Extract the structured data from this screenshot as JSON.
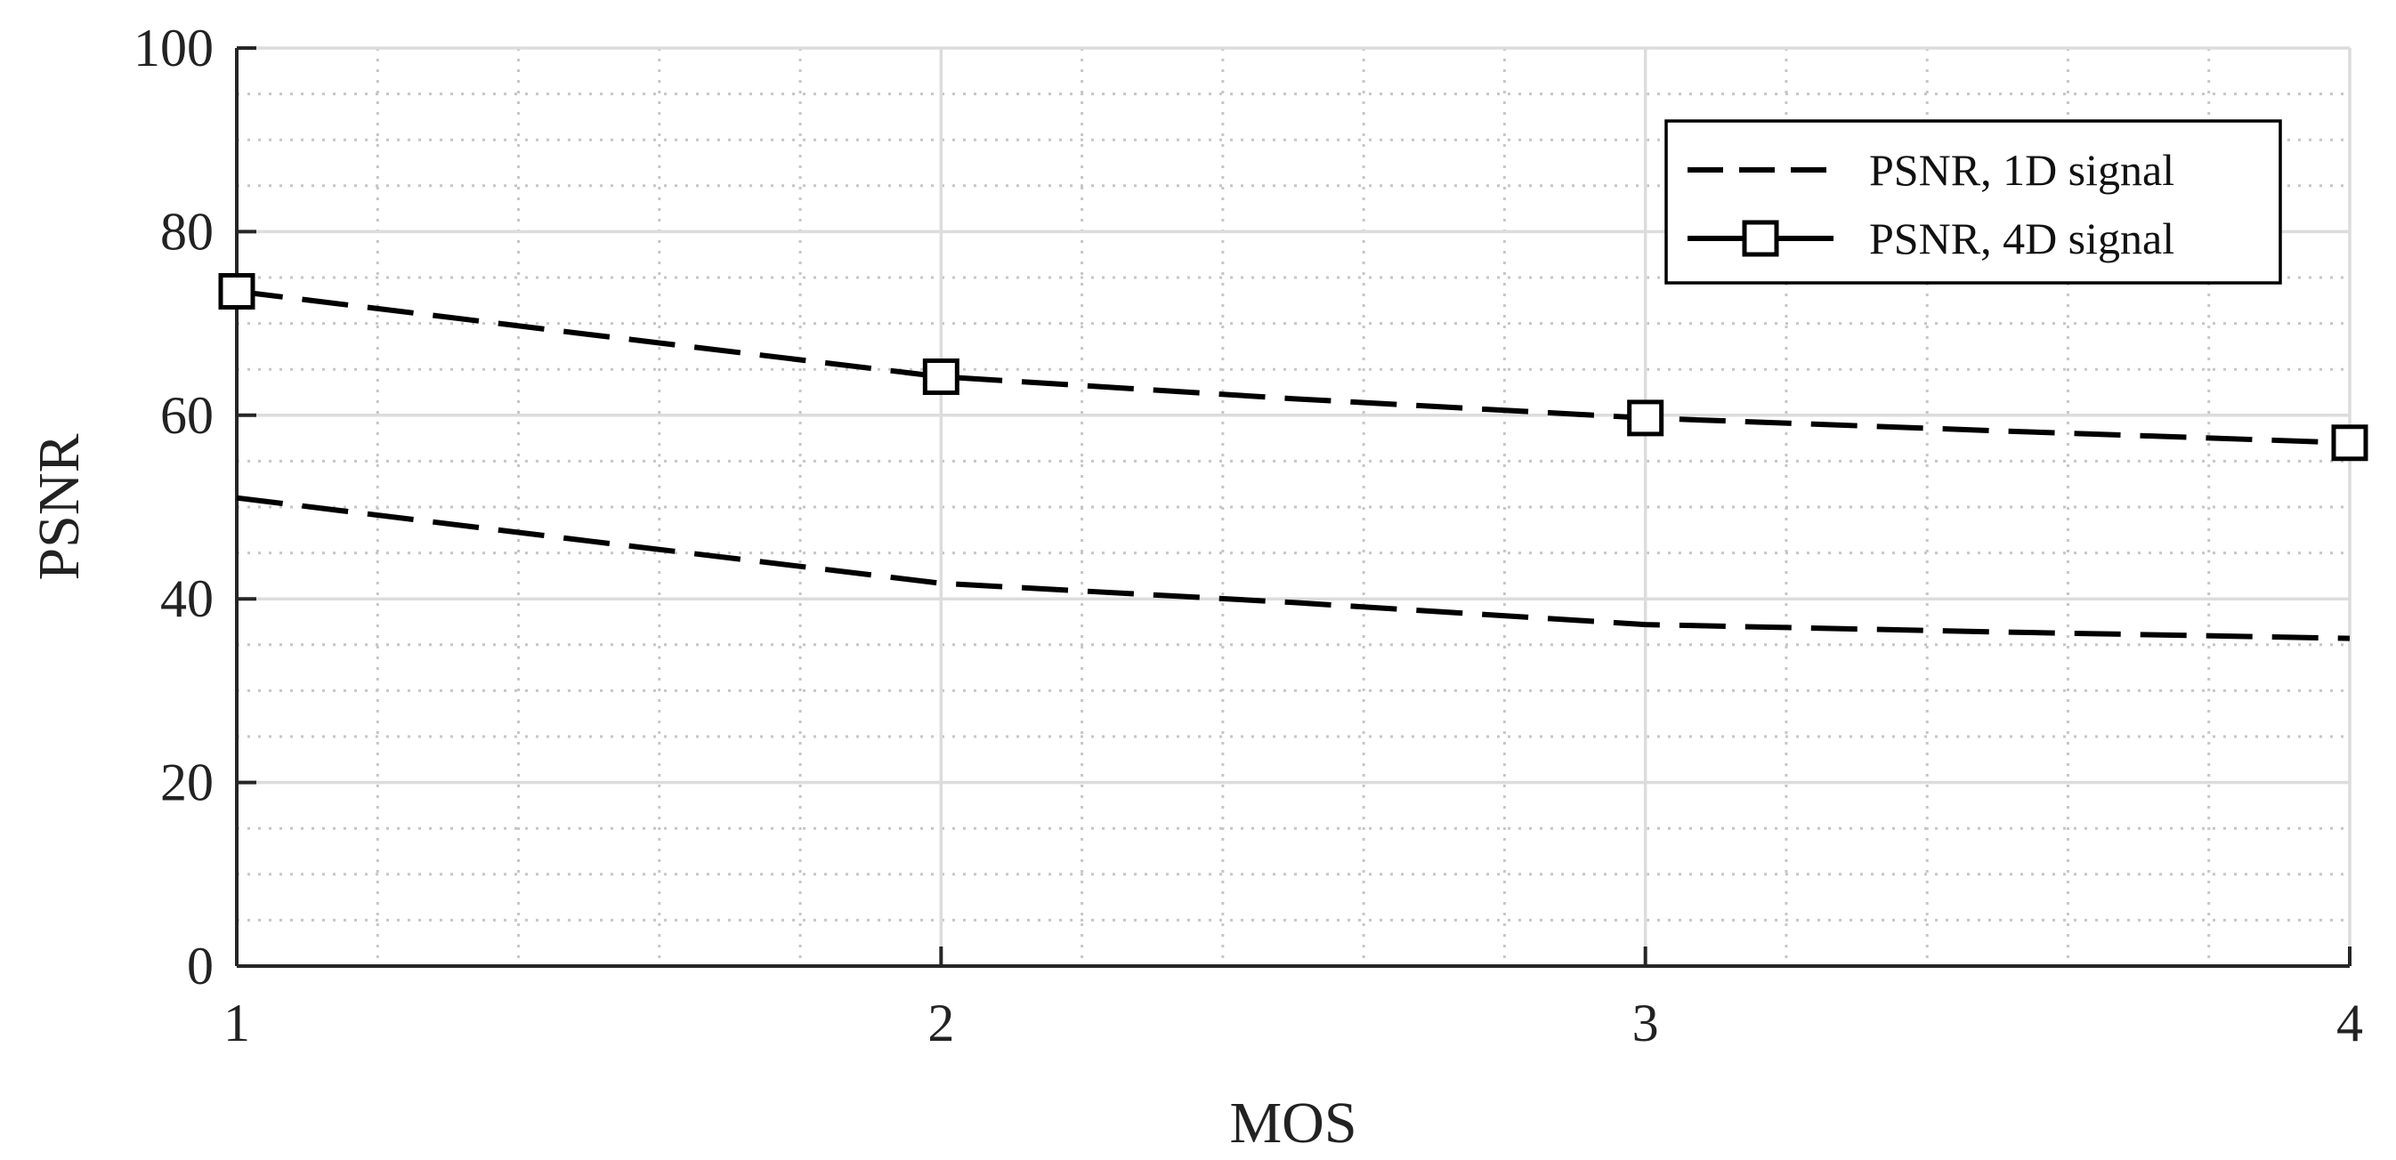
{
  "chart_data": {
    "type": "line",
    "title": "",
    "xlabel": "MOS",
    "ylabel": "PSNR",
    "xlim": [
      1,
      4
    ],
    "ylim": [
      0,
      100
    ],
    "x_ticks": [
      1,
      2,
      3,
      4
    ],
    "y_ticks": [
      0,
      20,
      40,
      60,
      80,
      100
    ],
    "x_minor_step": 0.2,
    "y_minor_step": 5,
    "grid": true,
    "minor_grid": true,
    "legend_position": "top-right",
    "series": [
      {
        "name": "PSNR, 1D signal",
        "line_style": "dashed",
        "marker": "none",
        "color": "#000000",
        "x": [
          1,
          1.5,
          2,
          2.5,
          3,
          3.5,
          4
        ],
        "y": [
          51,
          46.3,
          41.7,
          39.6,
          37.2,
          36.4,
          35.7
        ]
      },
      {
        "name": "PSNR, 4D signal",
        "line_style": "dashed",
        "marker": "square",
        "color": "#000000",
        "x": [
          1,
          1.5,
          2,
          2.5,
          3,
          3.5,
          4
        ],
        "y": [
          73.5,
          68.8,
          64.2,
          61.8,
          59.7,
          58.3,
          57
        ]
      }
    ]
  }
}
